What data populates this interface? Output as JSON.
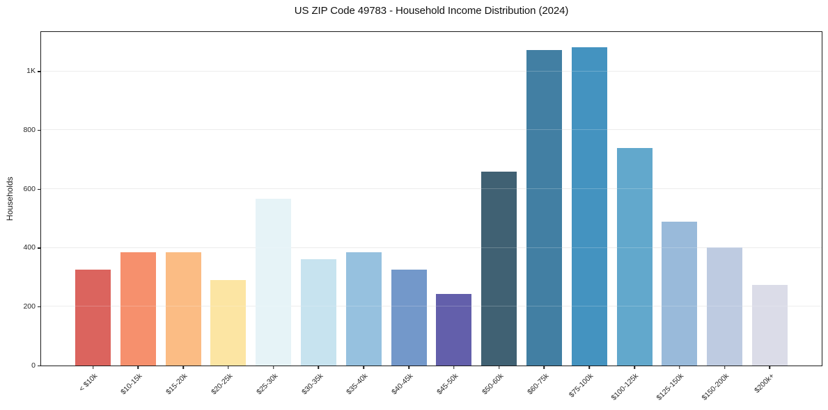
{
  "title": "US ZIP Code 49783 - Household Income Distribution (2024)",
  "chart_data": {
    "type": "bar",
    "title": "US ZIP Code 49783 - Household Income Distribution (2024)",
    "xlabel": "",
    "ylabel": "Households",
    "categories": [
      "< $10k",
      "$10-15k",
      "$15-20k",
      "$20-25k",
      "$25-30k",
      "$30-35k",
      "$35-40k",
      "$40-45k",
      "$45-50k",
      "$50-60k",
      "$60-75k",
      "$75-100k",
      "$100-125k",
      "$125-150k",
      "$150-200k",
      "$200k+"
    ],
    "values": [
      327,
      386,
      386,
      290,
      566,
      361,
      385,
      327,
      244,
      658,
      1073,
      1083,
      740,
      490,
      402,
      273
    ],
    "bar_colors": [
      "#d95c55",
      "#f58a65",
      "#fbb87d",
      "#fce49e",
      "#e5f2f7",
      "#c4e1ee",
      "#90bedd",
      "#6b92c7",
      "#5b56a7",
      "#36596b",
      "#38789e",
      "#3a8dbd",
      "#5aa3c9",
      "#94b6d8",
      "#bac8df",
      "#d9dae7"
    ],
    "ylim": [
      0,
      1134
    ],
    "yticks": [
      {
        "value": 0,
        "label": "0"
      },
      {
        "value": 200,
        "label": "200"
      },
      {
        "value": 400,
        "label": "400"
      },
      {
        "value": 600,
        "label": "600"
      },
      {
        "value": 800,
        "label": "800"
      },
      {
        "value": 1000,
        "label": "1K"
      }
    ],
    "grid": "horizontal",
    "legend_position": "none",
    "frame_color": "#1a1a1a",
    "background_color": "#ffffff"
  }
}
